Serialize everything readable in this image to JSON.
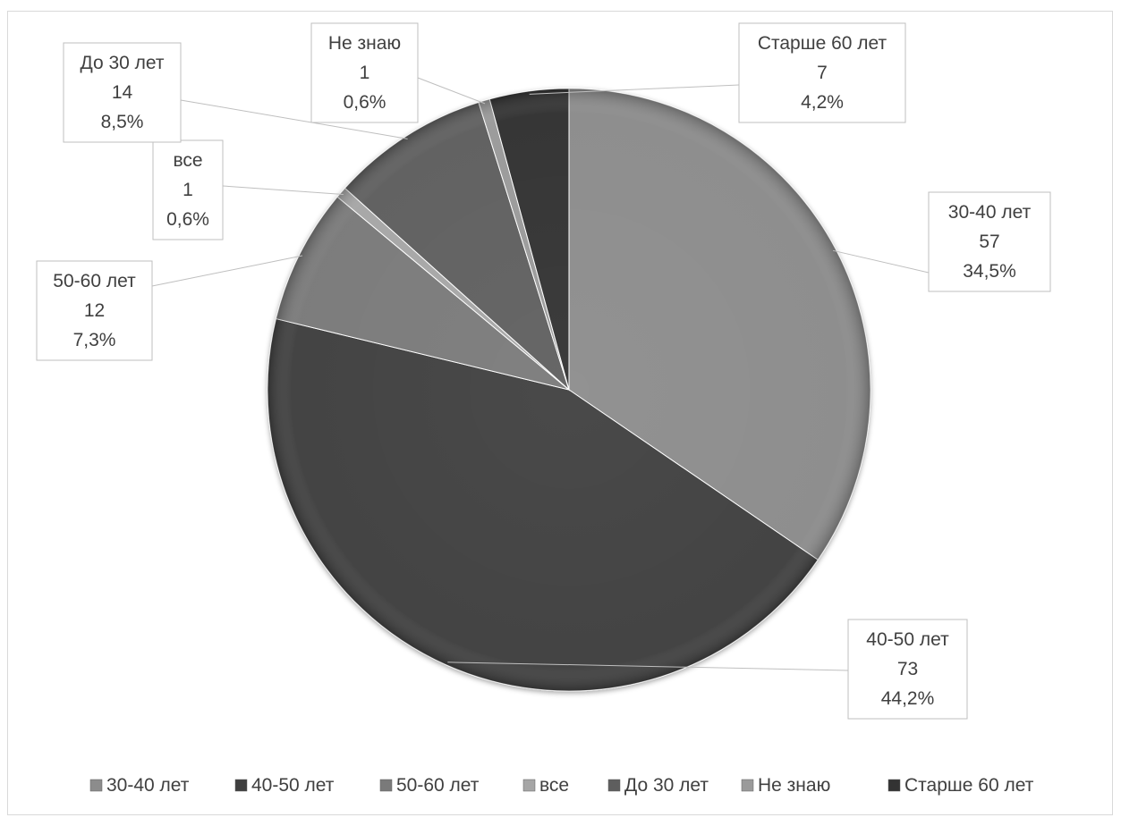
{
  "chart_data": {
    "type": "pie",
    "title": "",
    "legend_position": "bottom",
    "slices": [
      {
        "category": "30-40 лет",
        "value": 57,
        "percent_label": "34,5%",
        "color": "#8c8c8c"
      },
      {
        "category": "40-50 лет",
        "value": 73,
        "percent_label": "44,2%",
        "color": "#3f3f3f"
      },
      {
        "category": "50-60 лет",
        "value": 12,
        "percent_label": "7,3%",
        "color": "#7a7a7a"
      },
      {
        "category": "все",
        "value": 1,
        "percent_label": "0,6%",
        "color": "#a6a6a6"
      },
      {
        "category": "До 30 лет",
        "value": 14,
        "percent_label": "8,5%",
        "color": "#5e5e5e"
      },
      {
        "category": "Не знаю",
        "value": 1,
        "percent_label": "0,6%",
        "color": "#9a9a9a"
      },
      {
        "category": "Старше 60 лет",
        "value": 7,
        "percent_label": "4,2%",
        "color": "#333333"
      }
    ]
  }
}
